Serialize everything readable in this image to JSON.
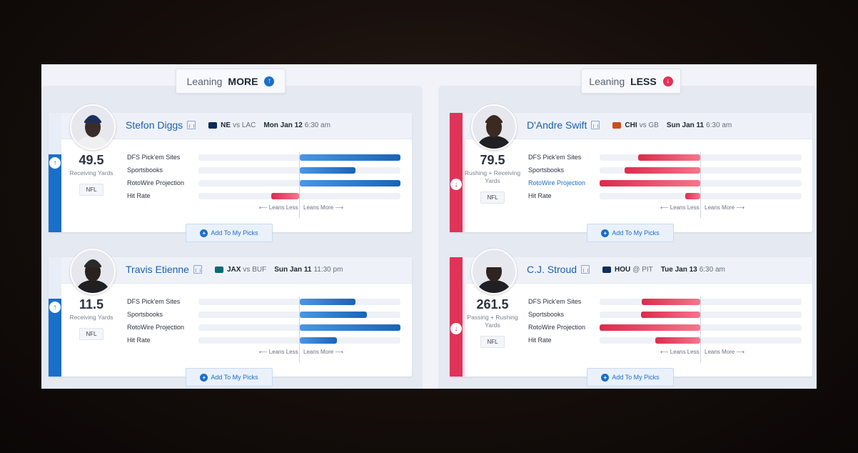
{
  "columns": [
    {
      "header_prefix": "Leaning",
      "header_strong": "MORE",
      "direction": "up",
      "cards": [
        {
          "name": "Stefon Diggs",
          "team": "NE",
          "vs": "vs LAC",
          "date": "Mon Jan 12",
          "time": "6:30 am",
          "value": "49.5",
          "stat": "Receiving Yards",
          "league": "NFL",
          "metrics": [
            {
              "label": "DFS Pick'em Sites",
              "side": "more",
              "fraction": 1.0,
              "link": false
            },
            {
              "label": "Sportsbooks",
              "side": "more",
              "fraction": 0.55,
              "link": false
            },
            {
              "label": "RotoWire Projection",
              "side": "more",
              "fraction": 1.0,
              "link": false
            },
            {
              "label": "Hit Rate",
              "side": "less",
              "fraction": 0.28,
              "link": false
            }
          ]
        },
        {
          "name": "Travis Etienne",
          "team": "JAX",
          "vs": "vs BUF",
          "date": "Sun Jan 11",
          "time": "11:30 pm",
          "value": "11.5",
          "stat": "Receiving Yards",
          "league": "NFL",
          "metrics": [
            {
              "label": "DFS Pick'em Sites",
              "side": "more",
              "fraction": 0.55,
              "link": false
            },
            {
              "label": "Sportsbooks",
              "side": "more",
              "fraction": 0.67,
              "link": false
            },
            {
              "label": "RotoWire Projection",
              "side": "more",
              "fraction": 1.0,
              "link": false
            },
            {
              "label": "Hit Rate",
              "side": "more",
              "fraction": 0.37,
              "link": false
            }
          ]
        }
      ]
    },
    {
      "header_prefix": "Leaning",
      "header_strong": "LESS",
      "direction": "down",
      "cards": [
        {
          "name": "D'Andre Swift",
          "team": "CHI",
          "vs": "vs GB",
          "date": "Sun Jan 11",
          "time": "6:30 am",
          "value": "79.5",
          "stat": "Rushing + Receiving Yards",
          "league": "NFL",
          "metrics": [
            {
              "label": "DFS Pick'em Sites",
              "side": "less",
              "fraction": 0.62,
              "link": false
            },
            {
              "label": "Sportsbooks",
              "side": "less",
              "fraction": 0.75,
              "link": false
            },
            {
              "label": "RotoWire Projection",
              "side": "less",
              "fraction": 1.0,
              "link": true
            },
            {
              "label": "Hit Rate",
              "side": "less",
              "fraction": 0.15,
              "link": false
            }
          ]
        },
        {
          "name": "C.J. Stroud",
          "team": "HOU",
          "vs": "@ PIT",
          "date": "Tue Jan 13",
          "time": "6:30 am",
          "value": "261.5",
          "stat": "Passing + Rushing Yards",
          "league": "NFL",
          "metrics": [
            {
              "label": "DFS Pick'em Sites",
              "side": "less",
              "fraction": 0.58,
              "link": false
            },
            {
              "label": "Sportsbooks",
              "side": "less",
              "fraction": 0.59,
              "link": false
            },
            {
              "label": "RotoWire Projection",
              "side": "less",
              "fraction": 1.0,
              "link": false
            },
            {
              "label": "Hit Rate",
              "side": "less",
              "fraction": 0.45,
              "link": false
            }
          ]
        }
      ]
    }
  ],
  "leans_less": "⟵ Leans Less",
  "leans_more": "Leans More ⟶",
  "add_label": "Add To My Picks",
  "colors": {
    "more": "#1a6fc9",
    "less": "#e03357",
    "ne": "#0b2a57",
    "jax": "#0a6b70",
    "chi": "#c8501e",
    "hou": "#102f5a"
  },
  "team_logo_colors": [
    "ne",
    "jax",
    "chi",
    "hou"
  ]
}
